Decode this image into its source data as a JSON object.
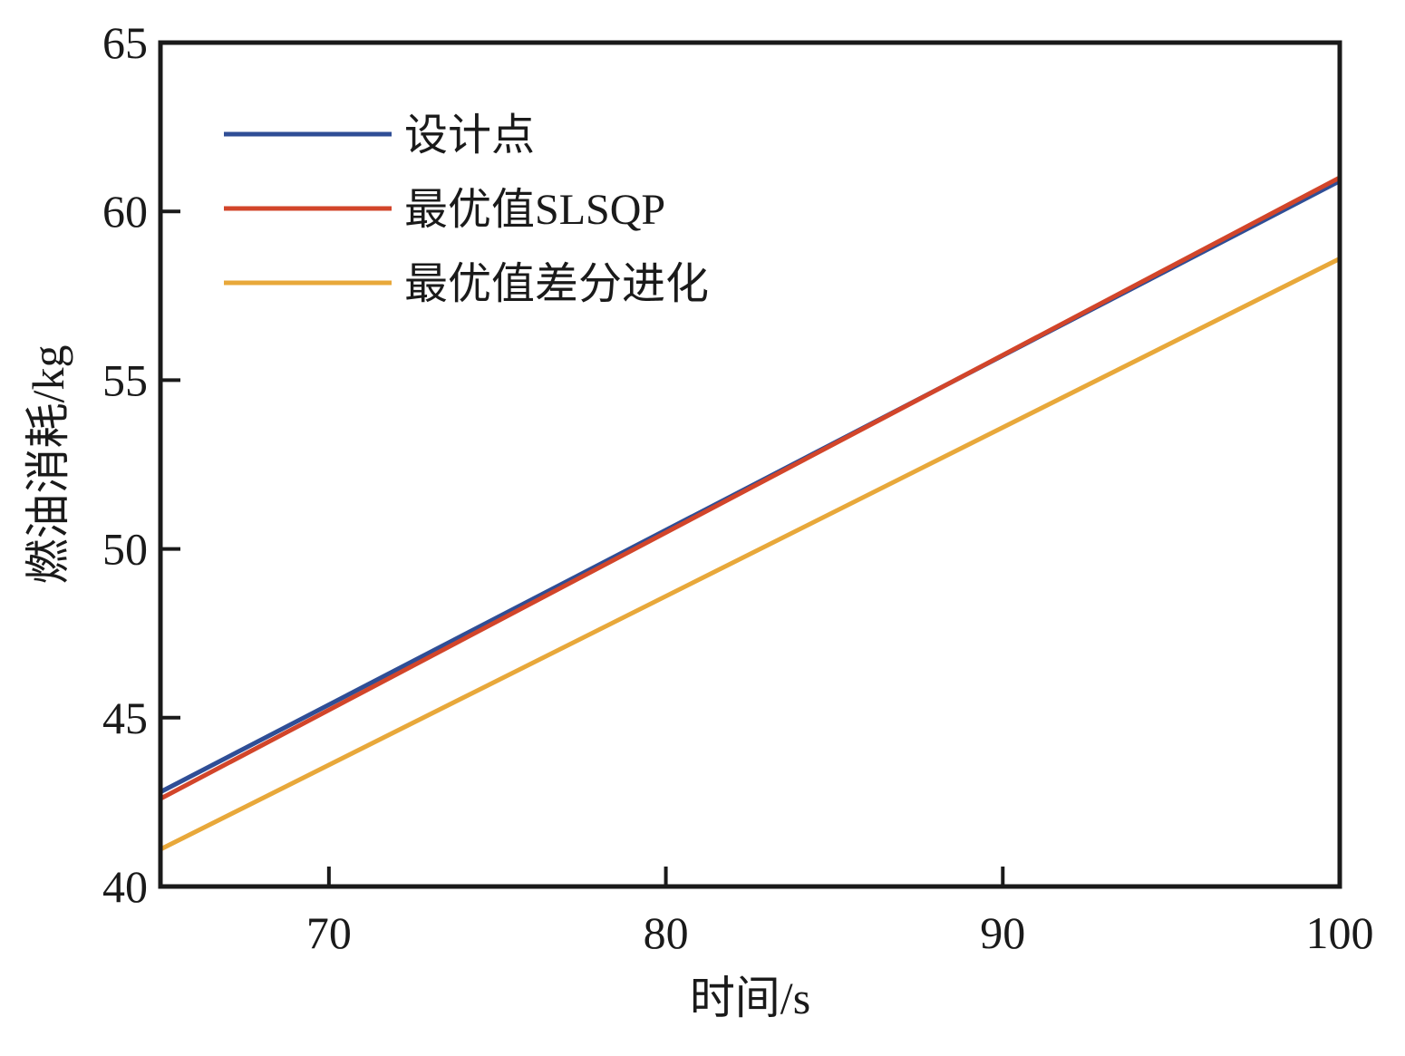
{
  "chart_data": {
    "type": "line",
    "xlabel": "时间/s",
    "ylabel": "燃油消耗/kg",
    "xlim": [
      65,
      100
    ],
    "ylim": [
      40,
      65
    ],
    "x_ticks": [
      70,
      80,
      90,
      100
    ],
    "y_ticks": [
      40,
      45,
      50,
      55,
      60,
      65
    ],
    "grid": false,
    "legend_position": "top-left",
    "series": [
      {
        "name": "设计点",
        "color": "#2f4e96",
        "x": [
          65,
          100
        ],
        "y": [
          42.8,
          60.9
        ]
      },
      {
        "name": "最优值SLSQP",
        "color": "#d2452a",
        "x": [
          65,
          100
        ],
        "y": [
          42.6,
          61.0
        ]
      },
      {
        "name": "最优值差分进化",
        "color": "#e8a83a",
        "x": [
          65,
          100
        ],
        "y": [
          41.1,
          58.6
        ]
      }
    ]
  }
}
